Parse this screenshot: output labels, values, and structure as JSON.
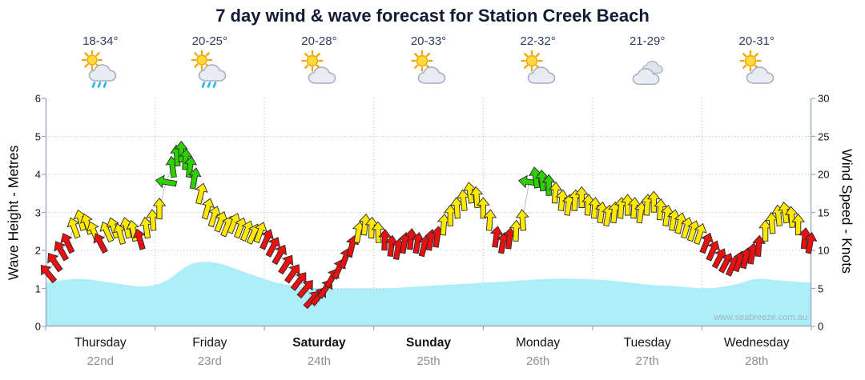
{
  "title": "7 day wind & wave forecast for Station Creek Beach",
  "watermark": "www.seabreeze.com.au",
  "colors": {
    "wave_fill": "#aeeef9",
    "wind_light": "#e81010",
    "wind_moderate": "#ffe900",
    "wind_strong": "#2ed000",
    "frame": "#9aa8c0",
    "grid": "#b5b5b5"
  },
  "days": [
    {
      "name": "Thursday",
      "date": "22nd",
      "temp": "18-34°",
      "icon": "sun-cloud-rain",
      "weekend": false
    },
    {
      "name": "Friday",
      "date": "23rd",
      "temp": "20-25°",
      "icon": "sun-cloud-rain",
      "weekend": false
    },
    {
      "name": "Saturday",
      "date": "24th",
      "temp": "20-28°",
      "icon": "sun-cloud",
      "weekend": true
    },
    {
      "name": "Sunday",
      "date": "25th",
      "temp": "20-33°",
      "icon": "sun-cloud",
      "weekend": true
    },
    {
      "name": "Monday",
      "date": "26th",
      "temp": "22-32°",
      "icon": "sun-cloud",
      "weekend": false
    },
    {
      "name": "Tuesday",
      "date": "27th",
      "temp": "21-29°",
      "icon": "cloud",
      "weekend": false
    },
    {
      "name": "Wednesday",
      "date": "28th",
      "temp": "20-31°",
      "icon": "sun-cloud",
      "weekend": false
    }
  ],
  "chart_data": {
    "type": "area+wind-arrows",
    "title": "7 day wind & wave forecast for Station Creek Beach",
    "x_axis": {
      "unit": "days",
      "range": [
        0,
        7
      ]
    },
    "left_axis": {
      "label": "Wave Height - Metres",
      "min": 0,
      "max": 6,
      "ticks": [
        0,
        1,
        2,
        3,
        4,
        5,
        6
      ]
    },
    "right_axis": {
      "label": "Wind Speed - Knots",
      "min": 0,
      "max": 30,
      "ticks": [
        0,
        5,
        10,
        15,
        20,
        25,
        30
      ]
    },
    "wind_color_thresholds_knots": {
      "light_below": 12,
      "strong_at_or_above": 18.5
    },
    "wave_series": {
      "name": "Wave Height (m)",
      "points": [
        [
          0,
          1.15
        ],
        [
          0.3,
          1.25
        ],
        [
          0.6,
          1.15
        ],
        [
          0.9,
          1.05
        ],
        [
          1.1,
          1.2
        ],
        [
          1.3,
          1.6
        ],
        [
          1.45,
          1.7
        ],
        [
          1.6,
          1.65
        ],
        [
          1.8,
          1.45
        ],
        [
          2,
          1.25
        ],
        [
          2.2,
          1.1
        ],
        [
          2.5,
          1.0
        ],
        [
          2.8,
          1.0
        ],
        [
          3.1,
          1.0
        ],
        [
          3.4,
          1.05
        ],
        [
          3.7,
          1.1
        ],
        [
          4,
          1.15
        ],
        [
          4.3,
          1.2
        ],
        [
          4.6,
          1.25
        ],
        [
          4.9,
          1.25
        ],
        [
          5.2,
          1.2
        ],
        [
          5.5,
          1.1
        ],
        [
          5.8,
          1.05
        ],
        [
          6.05,
          1.0
        ],
        [
          6.3,
          1.1
        ],
        [
          6.5,
          1.25
        ],
        [
          6.75,
          1.2
        ],
        [
          7,
          1.15
        ]
      ]
    },
    "wind_series": {
      "name": "Wind Speed (knots) with direction (deg, 0 = up)",
      "points": [
        [
          0.02,
          7,
          -40
        ],
        [
          0.08,
          8.5,
          -35
        ],
        [
          0.14,
          10,
          -30
        ],
        [
          0.2,
          11,
          -25
        ],
        [
          0.26,
          13,
          -20
        ],
        [
          0.32,
          14,
          -15
        ],
        [
          0.38,
          13.5,
          -18
        ],
        [
          0.44,
          12.5,
          -22
        ],
        [
          0.5,
          11,
          -28
        ],
        [
          0.56,
          12.5,
          -24
        ],
        [
          0.62,
          13,
          -18
        ],
        [
          0.68,
          12.2,
          -16
        ],
        [
          0.74,
          13,
          -12
        ],
        [
          0.8,
          12.6,
          -12
        ],
        [
          0.86,
          11.5,
          -16
        ],
        [
          0.92,
          13,
          -8
        ],
        [
          0.98,
          14,
          -4
        ],
        [
          1.04,
          15.5,
          0
        ],
        [
          1.1,
          19,
          -80
        ],
        [
          1.16,
          21,
          -8
        ],
        [
          1.2,
          22.5,
          -4
        ],
        [
          1.24,
          23,
          0
        ],
        [
          1.28,
          22,
          4
        ],
        [
          1.32,
          21,
          8
        ],
        [
          1.36,
          19.5,
          10
        ],
        [
          1.42,
          17.5,
          14
        ],
        [
          1.48,
          15.5,
          16
        ],
        [
          1.54,
          14.5,
          18
        ],
        [
          1.6,
          13.8,
          20
        ],
        [
          1.66,
          13.2,
          22
        ],
        [
          1.72,
          13.6,
          22
        ],
        [
          1.78,
          13,
          20
        ],
        [
          1.84,
          12.6,
          22
        ],
        [
          1.9,
          12.2,
          24
        ],
        [
          1.96,
          12.4,
          20
        ],
        [
          2.02,
          11.5,
          24
        ],
        [
          2.08,
          10.5,
          28
        ],
        [
          2.14,
          9.5,
          30
        ],
        [
          2.2,
          8.2,
          33
        ],
        [
          2.26,
          7,
          35
        ],
        [
          2.32,
          6,
          38
        ],
        [
          2.38,
          5,
          40
        ],
        [
          2.44,
          3.6,
          42
        ],
        [
          2.5,
          4,
          38
        ],
        [
          2.56,
          5,
          34
        ],
        [
          2.62,
          6.4,
          30
        ],
        [
          2.68,
          7.6,
          24
        ],
        [
          2.74,
          9,
          20
        ],
        [
          2.8,
          10.6,
          14
        ],
        [
          2.86,
          12.4,
          10
        ],
        [
          2.92,
          13.4,
          6
        ],
        [
          2.98,
          13,
          2
        ],
        [
          3.04,
          12.4,
          -2
        ],
        [
          3.1,
          11.4,
          2
        ],
        [
          3.16,
          10.6,
          6
        ],
        [
          3.22,
          10.2,
          10
        ],
        [
          3.28,
          11,
          10
        ],
        [
          3.34,
          11.5,
          6
        ],
        [
          3.4,
          11,
          10
        ],
        [
          3.46,
          10.6,
          14
        ],
        [
          3.52,
          11.4,
          10
        ],
        [
          3.58,
          11.8,
          8
        ],
        [
          3.64,
          13.4,
          4
        ],
        [
          3.7,
          14.6,
          0
        ],
        [
          3.76,
          15.6,
          -4
        ],
        [
          3.82,
          16.6,
          -6
        ],
        [
          3.88,
          17.6,
          -8
        ],
        [
          3.94,
          17,
          -4
        ],
        [
          4.0,
          15.6,
          0
        ],
        [
          4.06,
          14,
          4
        ],
        [
          4.12,
          11.8,
          8
        ],
        [
          4.18,
          11,
          10
        ],
        [
          4.24,
          11.6,
          6
        ],
        [
          4.3,
          12.6,
          2
        ],
        [
          4.36,
          14,
          -4
        ],
        [
          4.42,
          19,
          -82
        ],
        [
          4.48,
          19.6,
          -8
        ],
        [
          4.54,
          19.2,
          -4
        ],
        [
          4.6,
          18.6,
          0
        ],
        [
          4.66,
          17.6,
          4
        ],
        [
          4.72,
          16.6,
          6
        ],
        [
          4.78,
          16,
          8
        ],
        [
          4.84,
          16.6,
          4
        ],
        [
          4.9,
          17,
          0
        ],
        [
          4.96,
          16,
          4
        ],
        [
          5.02,
          15.6,
          4
        ],
        [
          5.08,
          15,
          8
        ],
        [
          5.14,
          14.6,
          10
        ],
        [
          5.2,
          15,
          6
        ],
        [
          5.26,
          15.6,
          4
        ],
        [
          5.32,
          16,
          0
        ],
        [
          5.38,
          15.6,
          4
        ],
        [
          5.44,
          15,
          8
        ],
        [
          5.5,
          16,
          4
        ],
        [
          5.56,
          16.4,
          0
        ],
        [
          5.62,
          15.4,
          4
        ],
        [
          5.68,
          14.6,
          8
        ],
        [
          5.74,
          14,
          10
        ],
        [
          5.8,
          13.6,
          14
        ],
        [
          5.86,
          13,
          16
        ],
        [
          5.92,
          12.6,
          18
        ],
        [
          5.98,
          12.2,
          18
        ],
        [
          6.04,
          11,
          22
        ],
        [
          6.1,
          10,
          24
        ],
        [
          6.16,
          9,
          28
        ],
        [
          6.22,
          8.4,
          28
        ],
        [
          6.28,
          8,
          24
        ],
        [
          6.34,
          8.6,
          18
        ],
        [
          6.4,
          9,
          14
        ],
        [
          6.46,
          9.6,
          10
        ],
        [
          6.52,
          10.6,
          4
        ],
        [
          6.58,
          12.6,
          0
        ],
        [
          6.64,
          13.6,
          -4
        ],
        [
          6.7,
          14.6,
          -6
        ],
        [
          6.76,
          15,
          -8
        ],
        [
          6.82,
          14.4,
          -4
        ],
        [
          6.88,
          13.4,
          0
        ],
        [
          6.94,
          11.6,
          6
        ],
        [
          6.99,
          11,
          10
        ]
      ]
    }
  }
}
